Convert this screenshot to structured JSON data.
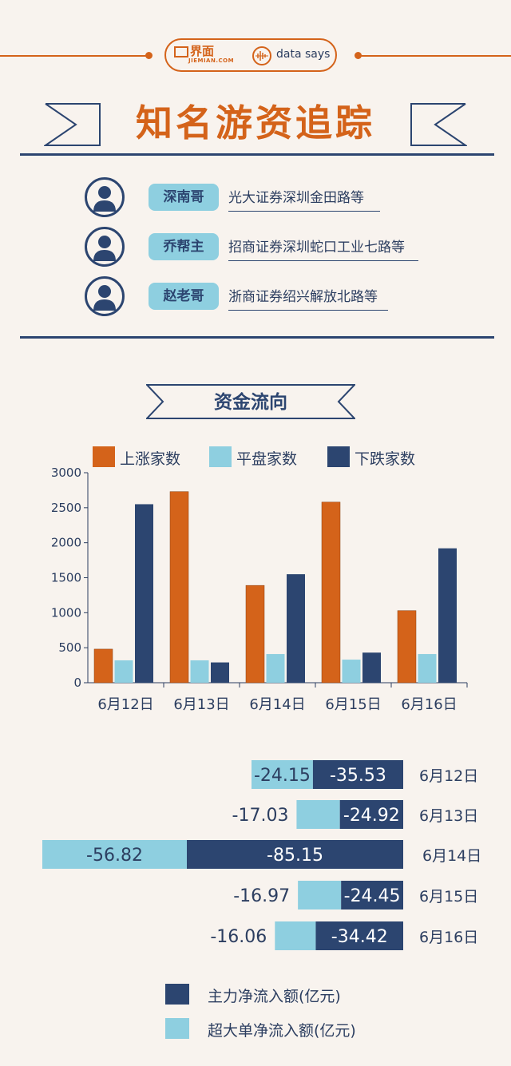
{
  "brand": {
    "logo_cn": "界面",
    "logo_en": "JIEMIAN.COM",
    "tag": "data says"
  },
  "title": "知名游资追踪",
  "traders": [
    {
      "name": "深南哥",
      "office": "光大证券深圳金田路等"
    },
    {
      "name": "乔帮主",
      "office": "招商证券深圳蛇口工业七路等"
    },
    {
      "name": "赵老哥",
      "office": "浙商证券绍兴解放北路等"
    }
  ],
  "section_title": "资金流向",
  "colors": {
    "orange": "#d4631a",
    "light_blue": "#8ecfe0",
    "navy": "#2c4570"
  },
  "chart_data": [
    {
      "type": "bar",
      "categories": [
        "6月12日",
        "6月13日",
        "6月14日",
        "6月15日",
        "6月16日"
      ],
      "series": [
        {
          "name": "上涨家数",
          "color": "#d4631a",
          "values": [
            480,
            2730,
            1390,
            2580,
            1030
          ]
        },
        {
          "name": "平盘家数",
          "color": "#8ecfe0",
          "values": [
            320,
            320,
            410,
            330,
            410
          ]
        },
        {
          "name": "下跌家数",
          "color": "#2c4570",
          "values": [
            2550,
            290,
            1550,
            430,
            1920
          ]
        }
      ],
      "ylim": [
        0,
        3000
      ],
      "yticks": [
        0,
        500,
        1000,
        1500,
        2000,
        2500,
        3000
      ],
      "legend": "top"
    },
    {
      "type": "bar",
      "orientation": "horizontal-stacked",
      "categories": [
        "6月12日",
        "6月13日",
        "6月14日",
        "6月15日",
        "6月16日"
      ],
      "series": [
        {
          "name": "主力净流入额(亿元)",
          "color": "#2c4570",
          "values": [
            -35.53,
            -24.92,
            -85.15,
            -24.45,
            -34.42
          ],
          "labels": [
            "-35.53",
            "-24.92",
            "-85.15",
            "-24.45",
            "-34.42"
          ]
        },
        {
          "name": "超大单净流入额(亿元)",
          "color": "#8ecfe0",
          "values": [
            -24.15,
            -17.03,
            -56.82,
            -16.97,
            -16.06
          ],
          "labels": [
            "-24.15",
            "-17.03",
            "-56.82",
            "-16.97",
            "-16.06"
          ]
        }
      ],
      "legend": "bottom"
    }
  ]
}
